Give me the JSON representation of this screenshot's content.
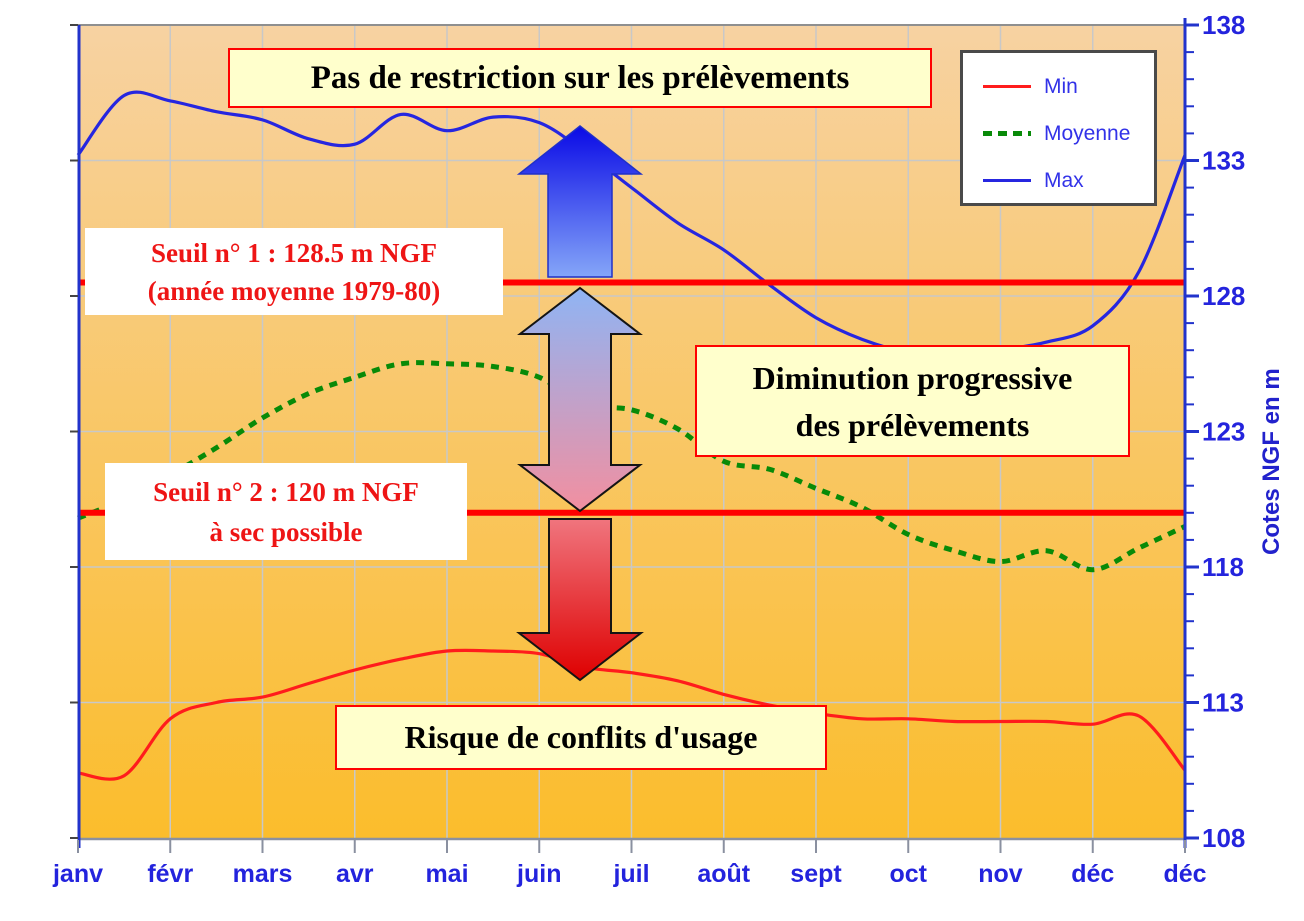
{
  "annotations": {
    "no_restriction": "Pas de restriction sur les prélèvements",
    "diminution_line1": "Diminution progressive",
    "diminution_line2": "des prélèvements",
    "risque": "Risque de conflits d'usage"
  },
  "chart_data": {
    "type": "line",
    "title": "",
    "xlabel": "",
    "ylabel": "Cotes NGF en m",
    "ylim": [
      108,
      138
    ],
    "yticks": [
      108,
      113,
      118,
      123,
      128,
      133,
      138
    ],
    "x_categories": [
      "janv",
      "févr",
      "mars",
      "avr",
      "mai",
      "juin",
      "juil",
      "août",
      "sept",
      "oct",
      "nov",
      "déc",
      "déc"
    ],
    "grid": true,
    "x_months": [
      0,
      0.5,
      1,
      1.5,
      2,
      2.5,
      3,
      3.5,
      4,
      4.5,
      5,
      5.5,
      6,
      6.5,
      7,
      7.5,
      8,
      8.5,
      9,
      9.5,
      10,
      10.5,
      11,
      11.5,
      12
    ],
    "series": [
      {
        "name": "Min",
        "color": "#FF1C1C",
        "style": "solid",
        "values": [
          110.4,
          110.3,
          112.4,
          113.0,
          113.2,
          113.7,
          114.2,
          114.6,
          114.9,
          114.9,
          114.8,
          114.3,
          114.1,
          113.8,
          113.3,
          112.9,
          112.6,
          112.4,
          112.4,
          112.3,
          112.3,
          112.3,
          112.2,
          112.5,
          110.5
        ]
      },
      {
        "name": "Moyenne",
        "color": "#088A08",
        "style": "dashed",
        "values": [
          119.8,
          120.5,
          121.4,
          122.4,
          123.5,
          124.4,
          125.0,
          125.5,
          125.5,
          125.4,
          125.0,
          124.0,
          123.8,
          123.1,
          121.9,
          121.6,
          120.9,
          120.2,
          119.2,
          118.6,
          118.2,
          118.6,
          117.9,
          118.7,
          119.5
        ]
      },
      {
        "name": "Max",
        "color": "#2626E0",
        "style": "solid",
        "values": [
          133.2,
          135.4,
          135.2,
          134.8,
          134.5,
          133.8,
          133.6,
          134.7,
          134.1,
          134.6,
          134.4,
          133.3,
          132.0,
          130.7,
          129.7,
          128.4,
          127.2,
          126.4,
          125.9,
          125.7,
          126.0,
          126.3,
          126.9,
          128.9,
          133.2
        ]
      }
    ],
    "thresholds": [
      {
        "value": 128.5,
        "color": "#FF0000",
        "label_line1": "Seuil n° 1 : 128.5 m NGF",
        "label_line2": "(année moyenne 1979-80)"
      },
      {
        "value": 120,
        "color": "#FF0000",
        "label_line1": "Seuil n° 2 : 120 m NGF",
        "label_line2": "à sec possible"
      }
    ],
    "legend": {
      "position": "top-right",
      "entries": [
        "Min",
        "Moyenne",
        "Max"
      ]
    }
  },
  "colors": {
    "plot_bg_top": "#F7D2A2",
    "plot_bg_mid": "#F9C766",
    "plot_bg_bottom": "#FBBD2C",
    "gridline": "#C8C8C8",
    "axis_blue": "#2233CC",
    "tick_label_blue": "#2323DD",
    "threshold_red": "#FF0000",
    "annotation_box_bg": "#FFFFCC",
    "annotation_box_border": "#FF0000",
    "up_arrow_top": "#0A0AE6",
    "up_arrow_bottom": "#85A6F8",
    "dual_arrow_top": "#8FB4F4",
    "dual_arrow_bottom": "#F28FA0",
    "down_arrow_top": "#F0757E",
    "down_arrow_bottom": "#DE0000"
  }
}
